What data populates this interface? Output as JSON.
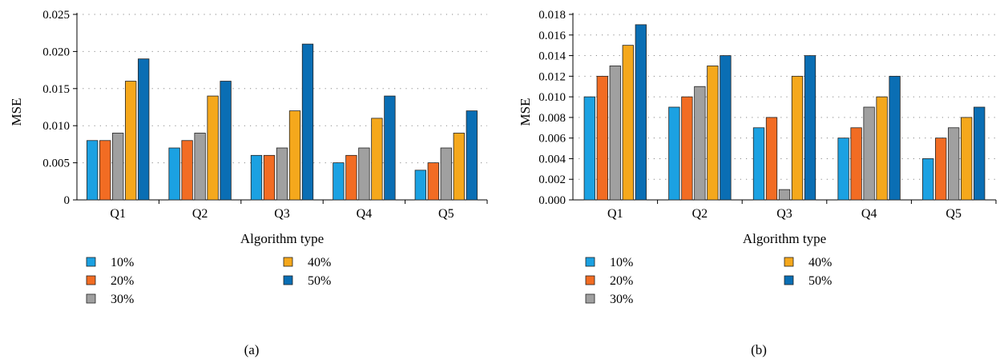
{
  "chart_data": [
    {
      "type": "bar",
      "panel_caption": "(a)",
      "xlabel": "Algorithm type",
      "ylabel": "MSE",
      "categories": [
        "Q1",
        "Q2",
        "Q3",
        "Q4",
        "Q5"
      ],
      "ylim": [
        0,
        0.025
      ],
      "yticks": [
        "0",
        "0.005",
        "0.010",
        "0.015",
        "0.020",
        "0.025"
      ],
      "ytick_values": [
        0,
        0.005,
        0.01,
        0.015,
        0.02,
        0.025
      ],
      "grid": "dotted horizontal",
      "legend_position": "bottom",
      "series": [
        {
          "name": "10%",
          "color": "#1ba1e2",
          "values": [
            0.008,
            0.007,
            0.006,
            0.005,
            0.004
          ]
        },
        {
          "name": "20%",
          "color": "#f26c23",
          "values": [
            0.008,
            0.008,
            0.006,
            0.006,
            0.005
          ]
        },
        {
          "name": "30%",
          "color": "#a0a0a0",
          "values": [
            0.009,
            0.009,
            0.007,
            0.007,
            0.007
          ]
        },
        {
          "name": "40%",
          "color": "#f5a81c",
          "values": [
            0.016,
            0.014,
            0.012,
            0.011,
            0.009
          ]
        },
        {
          "name": "50%",
          "color": "#0a6eb4",
          "values": [
            0.019,
            0.016,
            0.021,
            0.014,
            0.012
          ]
        }
      ]
    },
    {
      "type": "bar",
      "panel_caption": "(b)",
      "xlabel": "Algorithm type",
      "ylabel": "MSE",
      "categories": [
        "Q1",
        "Q2",
        "Q3",
        "Q4",
        "Q5"
      ],
      "ylim": [
        0,
        0.018
      ],
      "yticks": [
        "0.000",
        "0.002",
        "0.004",
        "0.006",
        "0.008",
        "0.010",
        "0.012",
        "0.014",
        "0.016",
        "0.018"
      ],
      "ytick_values": [
        0,
        0.002,
        0.004,
        0.006,
        0.008,
        0.01,
        0.012,
        0.014,
        0.016,
        0.018
      ],
      "grid": "dotted horizontal",
      "legend_position": "bottom",
      "series": [
        {
          "name": "10%",
          "color": "#1ba1e2",
          "values": [
            0.01,
            0.009,
            0.007,
            0.006,
            0.004
          ]
        },
        {
          "name": "20%",
          "color": "#f26c23",
          "values": [
            0.012,
            0.01,
            0.008,
            0.007,
            0.006
          ]
        },
        {
          "name": "30%",
          "color": "#a0a0a0",
          "values": [
            0.013,
            0.011,
            0.001,
            0.009,
            0.007
          ]
        },
        {
          "name": "40%",
          "color": "#f5a81c",
          "values": [
            0.015,
            0.013,
            0.012,
            0.01,
            0.008
          ]
        },
        {
          "name": "50%",
          "color": "#0a6eb4",
          "values": [
            0.017,
            0.014,
            0.014,
            0.012,
            0.009
          ]
        }
      ]
    }
  ]
}
